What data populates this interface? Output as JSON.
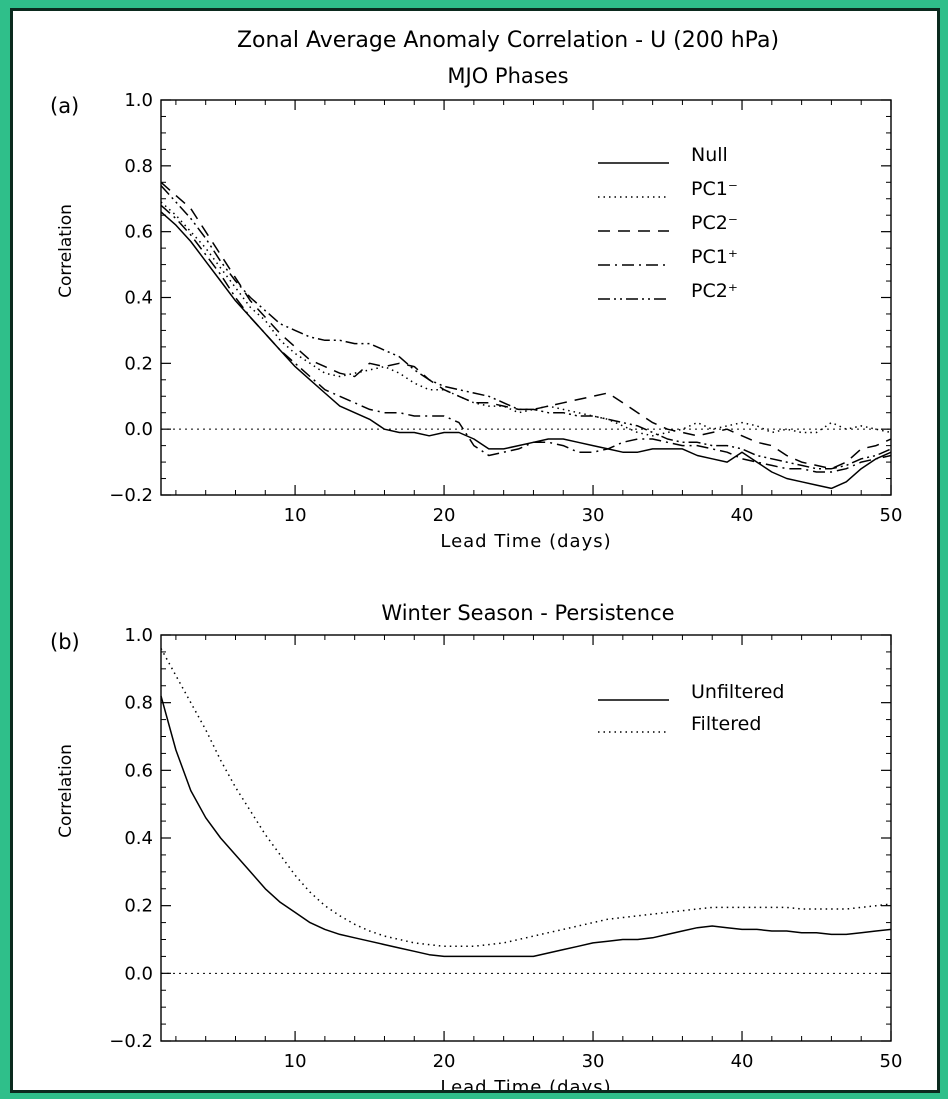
{
  "figure": {
    "main_title": "Zonal Average Anomaly Correlation - U (200 hPa)"
  },
  "chart_data": [
    {
      "type": "line",
      "panel_label": "(a)",
      "title": "MJO Phases",
      "xlabel": "Lead Time (days)",
      "ylabel": "Correlation",
      "xlim": [
        1,
        50
      ],
      "ylim": [
        -0.2,
        1.0
      ],
      "x_ticks": [
        10,
        20,
        30,
        40,
        50
      ],
      "y_ticks": [
        -0.2,
        0.0,
        0.2,
        0.4,
        0.6,
        0.8,
        1.0
      ],
      "y_tick_labels": [
        "−0.2",
        "0.0",
        "0.2",
        "0.4",
        "0.6",
        "0.8",
        "1.0"
      ],
      "zero_line": true,
      "grid": false,
      "legend_position": "top-right",
      "series": [
        {
          "name": "Null",
          "style": "solid",
          "x": [
            1,
            2,
            3,
            4,
            5,
            6,
            7,
            8,
            9,
            10,
            11,
            12,
            13,
            14,
            15,
            16,
            17,
            18,
            19,
            20,
            21,
            22,
            23,
            24,
            25,
            26,
            27,
            28,
            29,
            30,
            31,
            32,
            33,
            34,
            35,
            36,
            37,
            38,
            39,
            40,
            41,
            42,
            43,
            44,
            45,
            46,
            47,
            48,
            49,
            50
          ],
          "y": [
            0.66,
            0.62,
            0.57,
            0.51,
            0.45,
            0.39,
            0.34,
            0.29,
            0.24,
            0.19,
            0.15,
            0.11,
            0.07,
            0.05,
            0.03,
            0.0,
            -0.01,
            -0.01,
            -0.02,
            -0.01,
            -0.01,
            -0.03,
            -0.06,
            -0.06,
            -0.05,
            -0.04,
            -0.03,
            -0.03,
            -0.04,
            -0.05,
            -0.06,
            -0.07,
            -0.07,
            -0.06,
            -0.06,
            -0.06,
            -0.08,
            -0.09,
            -0.1,
            -0.07,
            -0.1,
            -0.13,
            -0.15,
            -0.16,
            -0.17,
            -0.18,
            -0.16,
            -0.12,
            -0.09,
            -0.07
          ]
        },
        {
          "name": "PC1⁻",
          "style": "dotted",
          "x": [
            1,
            2,
            3,
            4,
            5,
            6,
            7,
            8,
            9,
            10,
            11,
            12,
            13,
            14,
            15,
            16,
            17,
            18,
            19,
            20,
            21,
            22,
            23,
            24,
            25,
            26,
            27,
            28,
            29,
            30,
            31,
            32,
            33,
            34,
            35,
            36,
            37,
            38,
            39,
            40,
            41,
            42,
            43,
            44,
            45,
            46,
            47,
            48,
            49,
            50
          ],
          "y": [
            0.69,
            0.65,
            0.6,
            0.55,
            0.49,
            0.43,
            0.37,
            0.33,
            0.27,
            0.23,
            0.2,
            0.17,
            0.16,
            0.17,
            0.18,
            0.19,
            0.17,
            0.14,
            0.12,
            0.12,
            0.1,
            0.08,
            0.07,
            0.07,
            0.05,
            0.06,
            0.07,
            0.06,
            0.05,
            0.04,
            0.03,
            0.01,
            -0.01,
            -0.02,
            -0.01,
            0.0,
            0.02,
            0.0,
            0.01,
            0.02,
            0.01,
            -0.01,
            0.0,
            -0.01,
            -0.01,
            0.02,
            0.0,
            0.01,
            0.0,
            -0.01
          ]
        },
        {
          "name": "PC2⁻",
          "style": "dashed",
          "x": [
            1,
            2,
            3,
            4,
            5,
            6,
            7,
            8,
            9,
            10,
            11,
            12,
            13,
            14,
            15,
            16,
            17,
            18,
            19,
            20,
            21,
            22,
            23,
            24,
            25,
            26,
            27,
            28,
            29,
            30,
            31,
            32,
            33,
            34,
            35,
            36,
            37,
            38,
            39,
            40,
            41,
            42,
            43,
            44,
            45,
            46,
            47,
            48,
            49,
            50
          ],
          "y": [
            0.75,
            0.71,
            0.67,
            0.6,
            0.53,
            0.46,
            0.39,
            0.34,
            0.29,
            0.25,
            0.21,
            0.19,
            0.17,
            0.16,
            0.2,
            0.19,
            0.2,
            0.19,
            0.15,
            0.12,
            0.1,
            0.08,
            0.08,
            0.07,
            0.06,
            0.06,
            0.07,
            0.08,
            0.09,
            0.1,
            0.11,
            0.08,
            0.05,
            0.02,
            0.0,
            -0.01,
            -0.02,
            -0.01,
            0.0,
            -0.02,
            -0.04,
            -0.05,
            -0.08,
            -0.1,
            -0.11,
            -0.12,
            -0.1,
            -0.06,
            -0.05,
            -0.03
          ]
        },
        {
          "name": "PC1⁺",
          "style": "dashdot",
          "x": [
            1,
            2,
            3,
            4,
            5,
            6,
            7,
            8,
            9,
            10,
            11,
            12,
            13,
            14,
            15,
            16,
            17,
            18,
            19,
            20,
            21,
            22,
            23,
            24,
            25,
            26,
            27,
            28,
            29,
            30,
            31,
            32,
            33,
            34,
            35,
            36,
            37,
            38,
            39,
            40,
            41,
            42,
            43,
            44,
            45,
            46,
            47,
            48,
            49,
            50
          ],
          "y": [
            0.68,
            0.64,
            0.59,
            0.53,
            0.47,
            0.4,
            0.34,
            0.29,
            0.24,
            0.2,
            0.16,
            0.12,
            0.1,
            0.08,
            0.06,
            0.05,
            0.05,
            0.04,
            0.04,
            0.04,
            0.02,
            -0.05,
            -0.08,
            -0.07,
            -0.06,
            -0.04,
            -0.04,
            -0.05,
            -0.07,
            -0.07,
            -0.06,
            -0.04,
            -0.03,
            -0.03,
            -0.04,
            -0.05,
            -0.05,
            -0.06,
            -0.07,
            -0.09,
            -0.1,
            -0.11,
            -0.12,
            -0.12,
            -0.13,
            -0.13,
            -0.12,
            -0.1,
            -0.09,
            -0.08
          ]
        },
        {
          "name": "PC2⁺",
          "style": "dashdotdot",
          "x": [
            1,
            2,
            3,
            4,
            5,
            6,
            7,
            8,
            9,
            10,
            11,
            12,
            13,
            14,
            15,
            16,
            17,
            18,
            19,
            20,
            21,
            22,
            23,
            24,
            25,
            26,
            27,
            28,
            29,
            30,
            31,
            32,
            33,
            34,
            35,
            36,
            37,
            38,
            39,
            40,
            41,
            42,
            43,
            44,
            45,
            46,
            47,
            48,
            49,
            50
          ],
          "y": [
            0.74,
            0.69,
            0.64,
            0.58,
            0.51,
            0.45,
            0.4,
            0.36,
            0.32,
            0.3,
            0.28,
            0.27,
            0.27,
            0.26,
            0.26,
            0.24,
            0.22,
            0.18,
            0.15,
            0.13,
            0.12,
            0.11,
            0.1,
            0.08,
            0.06,
            0.06,
            0.05,
            0.05,
            0.04,
            0.04,
            0.03,
            0.02,
            0.01,
            -0.01,
            -0.03,
            -0.04,
            -0.04,
            -0.05,
            -0.05,
            -0.06,
            -0.08,
            -0.09,
            -0.1,
            -0.11,
            -0.12,
            -0.12,
            -0.11,
            -0.09,
            -0.08,
            -0.06
          ]
        }
      ]
    },
    {
      "type": "line",
      "panel_label": "(b)",
      "title": "Winter Season - Persistence",
      "xlabel": "Lead Time (days)",
      "ylabel": "Correlation",
      "xlim": [
        1,
        50
      ],
      "ylim": [
        -0.2,
        1.0
      ],
      "x_ticks": [
        10,
        20,
        30,
        40,
        50
      ],
      "y_ticks": [
        -0.2,
        0.0,
        0.2,
        0.4,
        0.6,
        0.8,
        1.0
      ],
      "y_tick_labels": [
        "−0.2",
        "0.0",
        "0.2",
        "0.4",
        "0.6",
        "0.8",
        "1.0"
      ],
      "zero_line": true,
      "grid": false,
      "legend_position": "top-right",
      "series": [
        {
          "name": "Unfiltered",
          "style": "solid",
          "x": [
            1,
            2,
            3,
            4,
            5,
            6,
            7,
            8,
            9,
            10,
            11,
            12,
            13,
            14,
            15,
            16,
            17,
            18,
            19,
            20,
            21,
            22,
            23,
            24,
            25,
            26,
            27,
            28,
            29,
            30,
            31,
            32,
            33,
            34,
            35,
            36,
            37,
            38,
            39,
            40,
            41,
            42,
            43,
            44,
            45,
            46,
            47,
            48,
            49,
            50
          ],
          "y": [
            0.82,
            0.66,
            0.54,
            0.46,
            0.4,
            0.35,
            0.3,
            0.25,
            0.21,
            0.18,
            0.15,
            0.13,
            0.115,
            0.105,
            0.095,
            0.085,
            0.075,
            0.065,
            0.055,
            0.05,
            0.05,
            0.05,
            0.05,
            0.05,
            0.05,
            0.05,
            0.06,
            0.07,
            0.08,
            0.09,
            0.095,
            0.1,
            0.1,
            0.105,
            0.115,
            0.125,
            0.135,
            0.14,
            0.135,
            0.13,
            0.13,
            0.125,
            0.125,
            0.12,
            0.12,
            0.115,
            0.115,
            0.12,
            0.125,
            0.13
          ]
        },
        {
          "name": "Filtered",
          "style": "dotted",
          "x": [
            1,
            2,
            3,
            4,
            5,
            6,
            7,
            8,
            9,
            10,
            11,
            12,
            13,
            14,
            15,
            16,
            17,
            18,
            19,
            20,
            21,
            22,
            23,
            24,
            25,
            26,
            27,
            28,
            29,
            30,
            31,
            32,
            33,
            34,
            35,
            36,
            37,
            38,
            39,
            40,
            41,
            42,
            43,
            44,
            45,
            46,
            47,
            48,
            49,
            50
          ],
          "y": [
            0.96,
            0.88,
            0.8,
            0.72,
            0.63,
            0.55,
            0.48,
            0.41,
            0.35,
            0.29,
            0.24,
            0.2,
            0.17,
            0.145,
            0.125,
            0.11,
            0.1,
            0.09,
            0.085,
            0.08,
            0.08,
            0.08,
            0.085,
            0.09,
            0.1,
            0.11,
            0.12,
            0.13,
            0.14,
            0.15,
            0.16,
            0.165,
            0.17,
            0.175,
            0.18,
            0.185,
            0.19,
            0.195,
            0.195,
            0.195,
            0.195,
            0.195,
            0.195,
            0.19,
            0.19,
            0.19,
            0.19,
            0.195,
            0.2,
            0.205
          ]
        }
      ]
    }
  ]
}
